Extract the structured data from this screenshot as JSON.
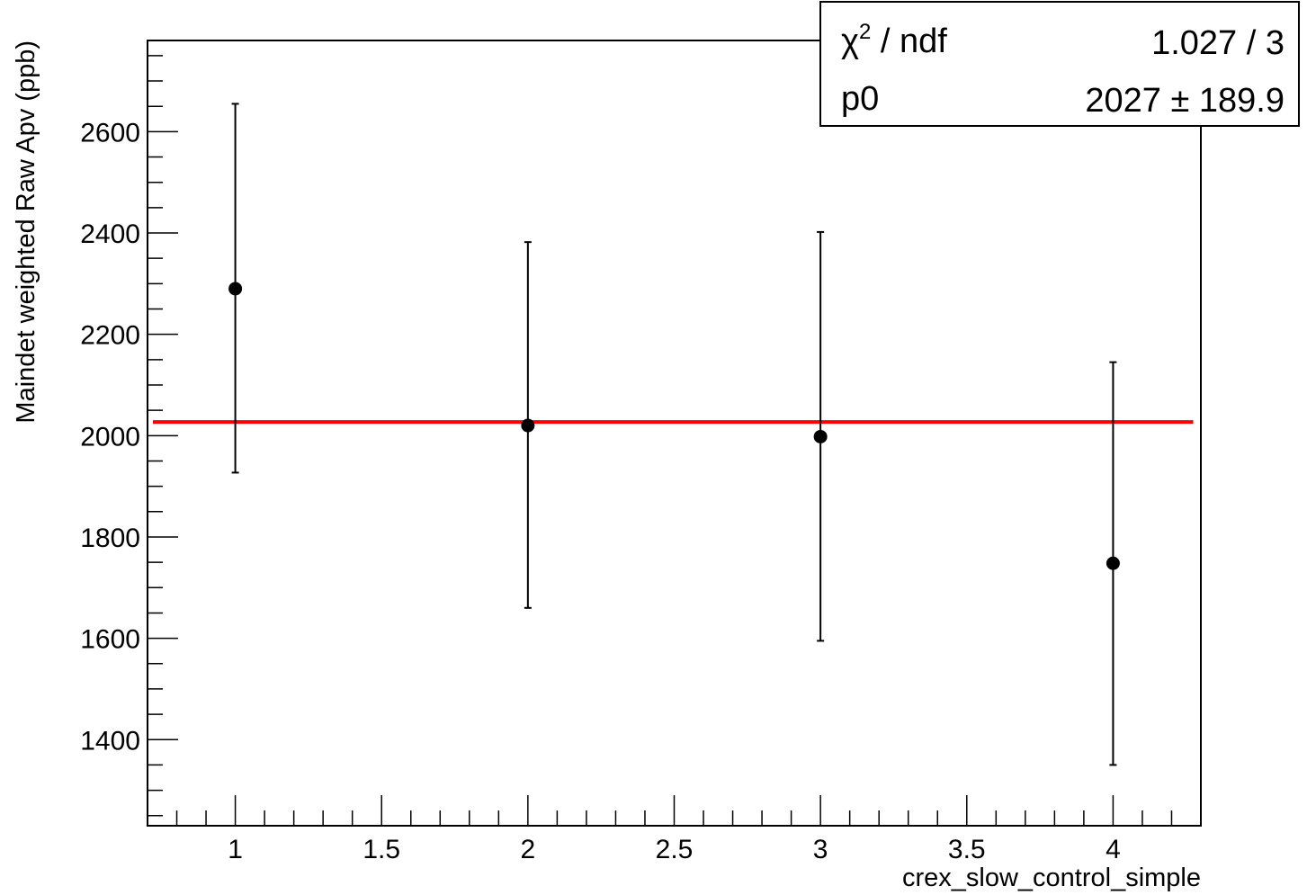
{
  "chart_data": {
    "type": "scatter",
    "title": "",
    "xlabel": "crex_slow_control_simple",
    "ylabel": "Maindet weighted Raw Apv (ppb)",
    "xlim": [
      0.7,
      4.3
    ],
    "ylim": [
      1230,
      2780
    ],
    "x_ticks": [
      1,
      1.5,
      2,
      2.5,
      3,
      3.5,
      4
    ],
    "x_tick_labels": [
      "1",
      "1.5",
      "2",
      "2.5",
      "3",
      "3.5",
      "4"
    ],
    "y_ticks": [
      1400,
      1600,
      1800,
      2000,
      2200,
      2400,
      2600
    ],
    "y_tick_labels": [
      "1400",
      "1600",
      "1800",
      "2000",
      "2200",
      "2400",
      "2600"
    ],
    "grid": false,
    "series": [
      {
        "x": [
          1,
          2,
          3,
          4
        ],
        "y": [
          2290,
          2020,
          1998,
          1748
        ],
        "yerr_low": [
          1927,
          1660,
          1595,
          1350
        ],
        "yerr_high": [
          2655,
          2382,
          2402,
          2145
        ],
        "color": "#000000"
      }
    ],
    "fit": {
      "value": 2027,
      "x_range": [
        0.7,
        4.28
      ],
      "color": "#ff0000"
    },
    "stats_box": {
      "chi2_label": "χ",
      "chi2_sup": "2",
      "chi2_suffix": " / ndf",
      "chi2_value": "1.027 / 3",
      "p0_label": "p0",
      "p0_value": "2027 ± 189.9"
    }
  }
}
